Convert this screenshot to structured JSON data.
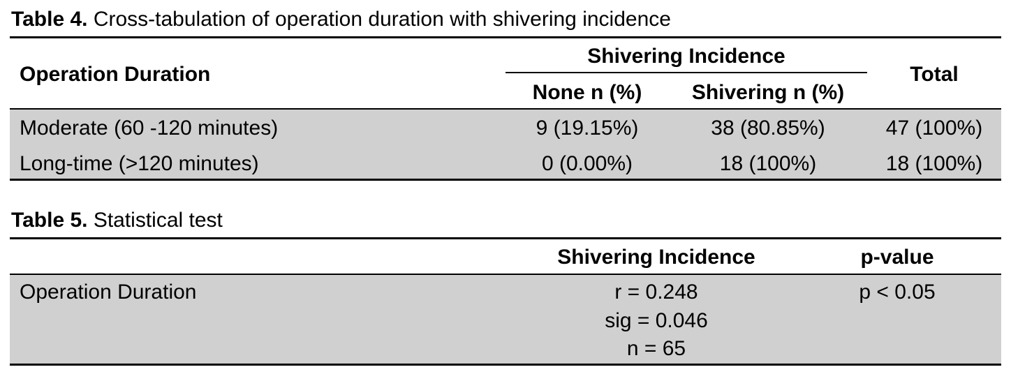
{
  "table4": {
    "caption_label": "Table 4.",
    "caption_text": " Cross-tabulation of operation duration with shivering incidence",
    "header": {
      "row_label": "Operation Duration",
      "group_label": "Shivering Incidence",
      "col_none": "None n (%)",
      "col_shivering": "Shivering n (%)",
      "col_total": "Total"
    },
    "rows": [
      {
        "label": "Moderate (60 -120 minutes)",
        "none": "9 (19.15%)",
        "shivering": "38 (80.85%)",
        "total": "47 (100%)"
      },
      {
        "label": "Long-time (>120 minutes)",
        "none": "0 (0.00%)",
        "shivering": "18 (100%)",
        "total": "18 (100%)"
      }
    ]
  },
  "table5": {
    "caption_label": "Table 5.",
    "caption_text": " Statistical test",
    "header": {
      "col_shivering": "Shivering Incidence",
      "col_pvalue": "p-value"
    },
    "row": {
      "label": "Operation Duration",
      "r": "r = 0.248",
      "sig": "sig = 0.046",
      "n": "n = 65",
      "pvalue": "p < 0.05"
    }
  }
}
